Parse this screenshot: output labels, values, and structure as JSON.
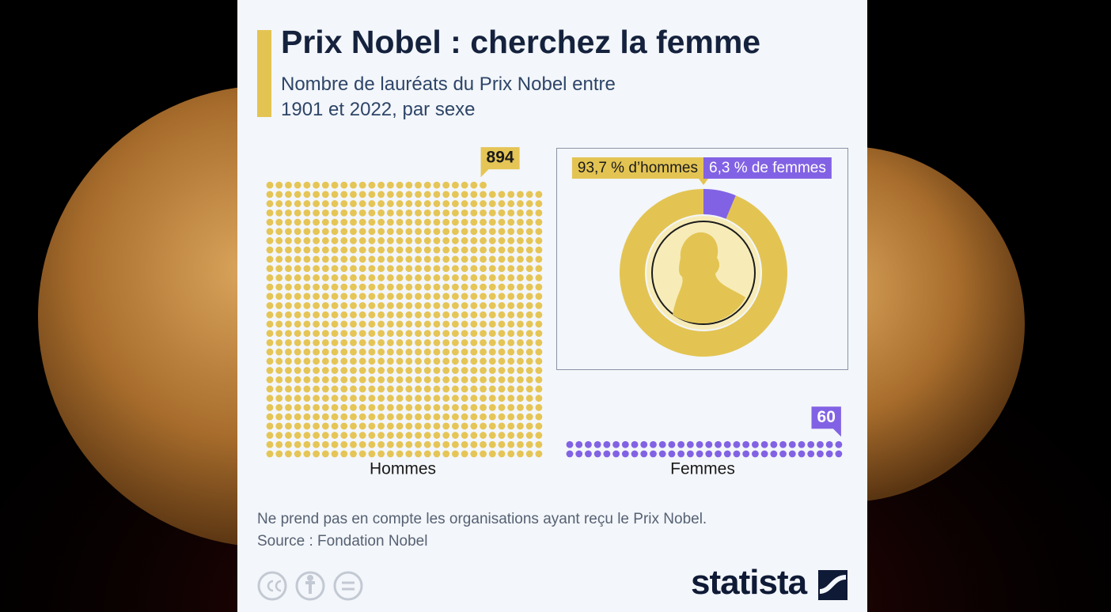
{
  "header": {
    "title": "Prix Nobel : cherchez la femme",
    "subtitle": "Nombre de lauréats du Prix Nobel entre 1901 et 2022, par sexe"
  },
  "chart_data": [
    {
      "type": "waffle",
      "categories": [
        "Hommes",
        "Femmes"
      ],
      "values": [
        894,
        60
      ],
      "colors": [
        "#e5c556",
        "#8262e4"
      ]
    },
    {
      "type": "pie",
      "donut": true,
      "values": [
        93.7,
        6.3
      ],
      "value_labels": [
        "93,7 % d’hommes",
        "6,3 % de femmes"
      ],
      "colors": [
        "#e3c453",
        "#8262e4"
      ]
    }
  ],
  "footer": {
    "note": "Ne prend pas en compte les organisations ayant reçu le Prix Nobel.",
    "source": "Source : Fondation Nobel",
    "brand": "statista"
  }
}
